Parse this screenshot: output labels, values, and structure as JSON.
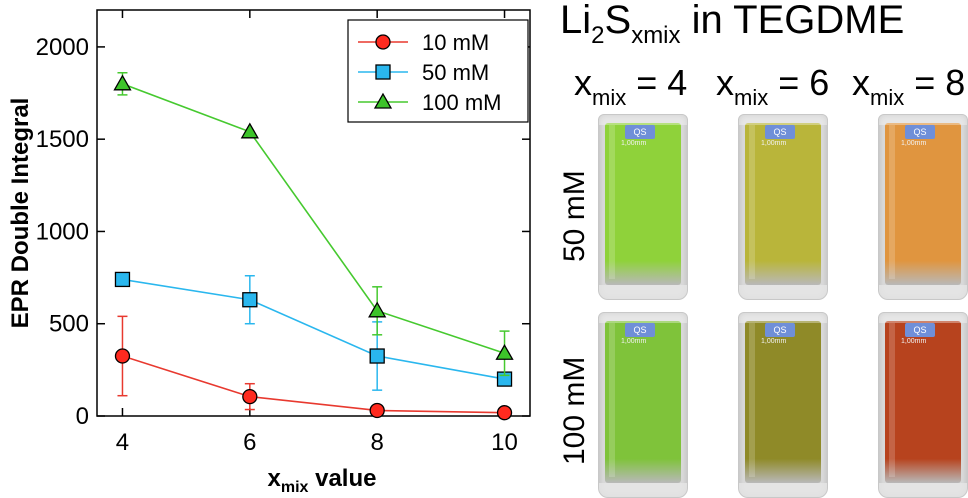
{
  "chart_data": {
    "type": "line",
    "xlabel_main": "x",
    "xlabel_sub": "mix",
    "xlabel_rest": " value",
    "ylabel": "EPR Double Integral",
    "x": [
      4,
      6,
      8,
      10
    ],
    "xticks": [
      "4",
      "6",
      "8",
      "10"
    ],
    "yticks": [
      "0",
      "500",
      "1000",
      "1500",
      "2000"
    ],
    "xlim": [
      3.6,
      10.4
    ],
    "ylim": [
      0,
      2200
    ],
    "series": [
      {
        "name": "10 mM",
        "marker": "circle",
        "color": "#ff2a1f",
        "line_color": "#e8392f",
        "values": [
          325,
          105,
          30,
          18
        ],
        "errors": [
          215,
          70,
          15,
          10
        ]
      },
      {
        "name": "50 mM",
        "marker": "square",
        "color": "#2ab7ee",
        "line_color": "#2ab7ee",
        "values": [
          740,
          630,
          325,
          200
        ],
        "errors": [
          0,
          130,
          185,
          0
        ]
      },
      {
        "name": "100 mM",
        "marker": "triangle",
        "color": "#3dc42a",
        "line_color": "#46c92f",
        "values": [
          1800,
          1540,
          570,
          340
        ],
        "errors": [
          60,
          0,
          130,
          120
        ]
      }
    ],
    "legend_position": "top-right",
    "grid": false
  },
  "photo_panel": {
    "title_main": "Li",
    "title_sub1": "2",
    "title_s": "S",
    "title_sub2": "xmix",
    "title_rest": " in TEGDME",
    "columns": [
      {
        "x": "x",
        "sub": "mix",
        "eq": " = 4"
      },
      {
        "x": "x",
        "sub": "mix",
        "eq": " = 6"
      },
      {
        "x": "x",
        "sub": "mix",
        "eq": " = 8"
      }
    ],
    "rows": [
      "50 mM",
      "100 mM"
    ],
    "cuvette_badge": "QS",
    "cuvette_badge_sub": "1,00mm",
    "colors": [
      [
        "#8fd23a",
        "#b9b53a",
        "#e0953f"
      ],
      [
        "#7fc33a",
        "#8f8a28",
        "#b7431e"
      ]
    ]
  }
}
